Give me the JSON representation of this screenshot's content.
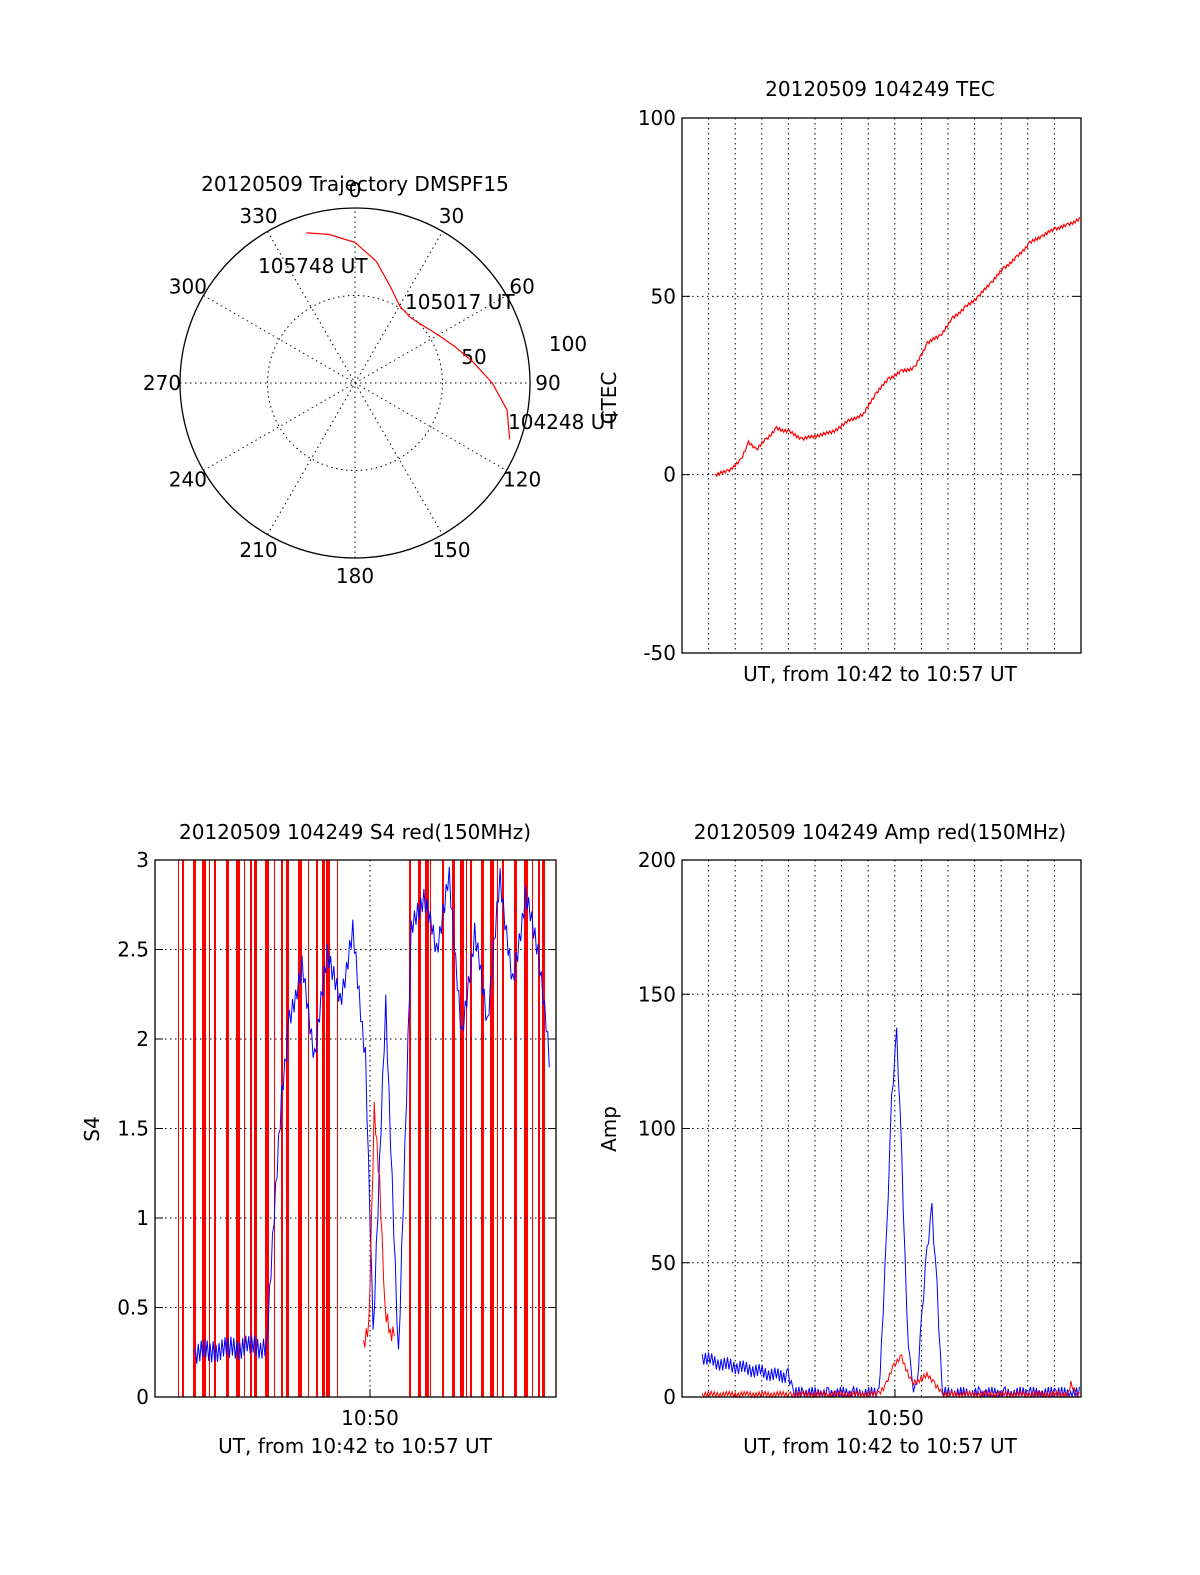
{
  "colors": {
    "red": "#ff0000",
    "blue": "#0000ff",
    "axis": "#000000"
  },
  "chart_data": [
    {
      "type": "polar",
      "title": "20120509 Trajectory DMSPF15",
      "azimuth_labels": [
        "0",
        "30",
        "60",
        "90",
        "120",
        "150",
        "180",
        "210",
        "240",
        "270",
        "300",
        "330"
      ],
      "radius_labels": [
        "50",
        "100"
      ],
      "points": [
        {
          "label": "104248 UT",
          "azimuth": 110,
          "elevation": 4
        },
        {
          "label": "105017 UT",
          "azimuth": 55,
          "elevation": 46
        },
        {
          "label": "105748 UT",
          "azimuth": 342,
          "elevation": 8
        }
      ],
      "trajectory": [
        [
          110,
          4
        ],
        [
          100,
          10
        ],
        [
          90,
          20
        ],
        [
          80,
          30
        ],
        [
          70,
          38
        ],
        [
          60,
          44
        ],
        [
          50,
          48
        ],
        [
          40,
          50
        ],
        [
          30,
          48
        ],
        [
          20,
          40
        ],
        [
          10,
          28
        ],
        [
          0,
          18
        ],
        [
          350,
          12
        ],
        [
          342,
          8
        ]
      ]
    },
    {
      "type": "line",
      "title": "20120509 104249 TEC",
      "xlabel": "UT, from 10:42 to 10:57 UT",
      "ylabel": "CTEC",
      "ylim": [
        -50,
        100
      ],
      "yticks": [
        "100",
        "50",
        "0",
        "-50"
      ],
      "x_unit": "minutes after 10:42",
      "series": [
        {
          "color": "red",
          "x": [
            0,
            0.5,
            1,
            1.3,
            1.6,
            2.0,
            2.4,
            2.9,
            3.4,
            4.0,
            4.6,
            5.2,
            5.8,
            6.3,
            6.8,
            7.3,
            7.8,
            8.3,
            8.8,
            9.3,
            9.8,
            10.3,
            10.8,
            11.3,
            11.8,
            12.3,
            12.8,
            13.3,
            13.8,
            14.3
          ],
          "y": [
            0,
            1,
            4,
            9,
            7,
            10,
            13,
            12,
            10,
            11,
            12,
            15,
            17,
            23,
            27,
            29,
            30,
            37,
            39,
            44,
            47,
            50,
            54,
            58,
            61,
            65,
            67,
            69,
            70,
            72
          ]
        }
      ]
    },
    {
      "type": "line",
      "title": "20120509 104249 S4 red(150MHz)",
      "xlabel": "UT, from 10:42 to 10:57 UT",
      "ylabel": "S4",
      "ylim": [
        0,
        3
      ],
      "yticks": [
        "3",
        "2.5",
        "2",
        "1.5",
        "1",
        "0.5",
        "0"
      ],
      "xticks": [
        "10:50"
      ],
      "series": [
        {
          "color": "blue",
          "x": [
            0.8,
            1.5,
            2.2,
            2.9,
            3.6,
            4.2,
            4.5,
            5.0,
            5.5,
            6.0,
            6.5,
            7.0,
            7.5,
            7.8,
            8.3,
            8.8,
            9.3,
            9.8,
            10.3,
            10.8,
            11.3,
            11.8,
            12.3,
            12.8,
            13.3,
            13.8,
            14.3,
            14.8
          ],
          "y": [
            0.25,
            0.26,
            0.27,
            0.28,
            0.28,
            1.7,
            2.1,
            2.4,
            1.9,
            2.5,
            2.2,
            2.6,
            1.9,
            0.35,
            2.2,
            0.2,
            2.6,
            2.8,
            2.5,
            2.9,
            2.0,
            2.6,
            2.1,
            2.9,
            2.3,
            2.8,
            2.5,
            1.8
          ]
        },
        {
          "color": "red",
          "x": [
            7.8,
            8.0,
            8.2,
            8.4,
            8.6,
            8.8,
            9.0
          ],
          "y": [
            0.3,
            0.4,
            1.6,
            1.2,
            0.5,
            0.35,
            0.4
          ]
        }
      ]
    },
    {
      "type": "line",
      "title": "20120509 104249 Amp red(150MHz)",
      "xlabel": "UT, from 10:42 to 10:57 UT",
      "ylabel": "Amp",
      "ylim": [
        0,
        200
      ],
      "yticks": [
        "200",
        "150",
        "100",
        "50",
        "0"
      ],
      "xticks": [
        "10:50"
      ],
      "series": [
        {
          "color": "blue",
          "x": [
            0,
            0.5,
            1,
            1.5,
            2,
            2.5,
            3,
            3.4,
            3.6,
            4,
            5,
            6,
            7,
            7.1,
            7.3,
            7.5,
            7.7,
            7.9,
            8.1,
            8.3,
            8.5,
            8.7,
            8.9,
            9.1,
            9.3,
            9.5,
            10,
            11,
            12,
            13,
            14,
            15
          ],
          "y": [
            15,
            13,
            12,
            11,
            10,
            9,
            8,
            8,
            1,
            1,
            1,
            1,
            1,
            20,
            60,
            110,
            135,
            90,
            30,
            5,
            2,
            30,
            55,
            70,
            40,
            1,
            1,
            1,
            1,
            1,
            1,
            1
          ]
        },
        {
          "color": "red",
          "x": [
            0,
            3.5,
            7,
            7.3,
            7.6,
            7.9,
            8.3,
            8.9,
            9.2,
            9.5,
            10,
            14.5,
            14.6,
            14.8,
            15
          ],
          "y": [
            1,
            1,
            1,
            5,
            12,
            15,
            5,
            8,
            5,
            1,
            1,
            1,
            5,
            1,
            1
          ]
        }
      ]
    }
  ]
}
